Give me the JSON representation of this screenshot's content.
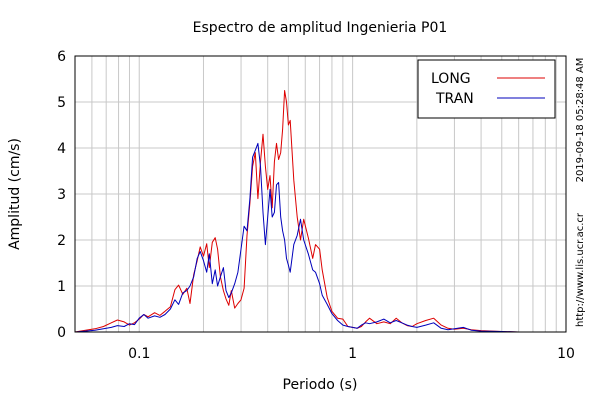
{
  "chart_data": {
    "type": "line",
    "title": "Espectro de amplitud Ingenieria P01",
    "xlabel": "Periodo (s)",
    "ylabel": "Amplitud (cm/s)",
    "xscale": "log",
    "xlim": [
      0.05,
      10
    ],
    "ylim": [
      0,
      6
    ],
    "x_ticks": [
      {
        "value": 0.1,
        "label": "0.1"
      },
      {
        "value": 1,
        "label": "1"
      },
      {
        "value": 10,
        "label": "10"
      }
    ],
    "y_ticks": [
      {
        "value": 0,
        "label": "0"
      },
      {
        "value": 1,
        "label": "1"
      },
      {
        "value": 2,
        "label": "2"
      },
      {
        "value": 3,
        "label": "3"
      },
      {
        "value": 4,
        "label": "4"
      },
      {
        "value": 5,
        "label": "5"
      },
      {
        "value": 6,
        "label": "6"
      }
    ],
    "grid": true,
    "legend_position": "top-right",
    "series": [
      {
        "name": "LONG",
        "color": "#dd0000",
        "points": [
          [
            0.05,
            0.0
          ],
          [
            0.056,
            0.04
          ],
          [
            0.062,
            0.07
          ],
          [
            0.068,
            0.12
          ],
          [
            0.074,
            0.2
          ],
          [
            0.079,
            0.26
          ],
          [
            0.085,
            0.22
          ],
          [
            0.09,
            0.15
          ],
          [
            0.095,
            0.2
          ],
          [
            0.1,
            0.28
          ],
          [
            0.105,
            0.38
          ],
          [
            0.11,
            0.33
          ],
          [
            0.118,
            0.42
          ],
          [
            0.125,
            0.36
          ],
          [
            0.132,
            0.45
          ],
          [
            0.14,
            0.55
          ],
          [
            0.147,
            0.92
          ],
          [
            0.153,
            1.02
          ],
          [
            0.16,
            0.82
          ],
          [
            0.167,
            0.95
          ],
          [
            0.173,
            0.62
          ],
          [
            0.18,
            1.25
          ],
          [
            0.187,
            1.55
          ],
          [
            0.193,
            1.85
          ],
          [
            0.2,
            1.65
          ],
          [
            0.207,
            1.92
          ],
          [
            0.213,
            1.4
          ],
          [
            0.22,
            1.95
          ],
          [
            0.227,
            2.05
          ],
          [
            0.233,
            1.8
          ],
          [
            0.24,
            1.2
          ],
          [
            0.248,
            0.9
          ],
          [
            0.255,
            0.72
          ],
          [
            0.263,
            0.58
          ],
          [
            0.27,
            0.9
          ],
          [
            0.28,
            0.52
          ],
          [
            0.29,
            0.62
          ],
          [
            0.3,
            0.7
          ],
          [
            0.31,
            0.95
          ],
          [
            0.32,
            2.1
          ],
          [
            0.33,
            2.8
          ],
          [
            0.34,
            3.6
          ],
          [
            0.35,
            3.9
          ],
          [
            0.36,
            2.9
          ],
          [
            0.37,
            3.7
          ],
          [
            0.38,
            4.3
          ],
          [
            0.39,
            3.6
          ],
          [
            0.4,
            3.1
          ],
          [
            0.41,
            3.4
          ],
          [
            0.42,
            2.7
          ],
          [
            0.43,
            3.7
          ],
          [
            0.44,
            4.1
          ],
          [
            0.45,
            3.75
          ],
          [
            0.46,
            3.9
          ],
          [
            0.47,
            4.4
          ],
          [
            0.48,
            5.25
          ],
          [
            0.49,
            5.0
          ],
          [
            0.5,
            4.5
          ],
          [
            0.51,
            4.6
          ],
          [
            0.53,
            3.3
          ],
          [
            0.55,
            2.5
          ],
          [
            0.57,
            2.0
          ],
          [
            0.59,
            2.45
          ],
          [
            0.62,
            2.05
          ],
          [
            0.65,
            1.6
          ],
          [
            0.67,
            1.9
          ],
          [
            0.7,
            1.8
          ],
          [
            0.72,
            1.35
          ],
          [
            0.76,
            0.75
          ],
          [
            0.8,
            0.45
          ],
          [
            0.85,
            0.3
          ],
          [
            0.9,
            0.28
          ],
          [
            0.95,
            0.12
          ],
          [
            1.0,
            0.1
          ],
          [
            1.05,
            0.08
          ],
          [
            1.1,
            0.12
          ],
          [
            1.15,
            0.22
          ],
          [
            1.2,
            0.3
          ],
          [
            1.3,
            0.18
          ],
          [
            1.4,
            0.22
          ],
          [
            1.5,
            0.18
          ],
          [
            1.6,
            0.3
          ],
          [
            1.7,
            0.2
          ],
          [
            1.8,
            0.14
          ],
          [
            1.9,
            0.12
          ],
          [
            2.0,
            0.18
          ],
          [
            2.2,
            0.25
          ],
          [
            2.4,
            0.3
          ],
          [
            2.6,
            0.15
          ],
          [
            2.8,
            0.08
          ],
          [
            3.0,
            0.06
          ],
          [
            3.3,
            0.08
          ],
          [
            3.6,
            0.05
          ],
          [
            4.0,
            0.03
          ],
          [
            5.0,
            0.01
          ],
          [
            6.0,
            0.0
          ],
          [
            10.0,
            0.0
          ]
        ]
      },
      {
        "name": "TRAN",
        "color": "#0000bb",
        "points": [
          [
            0.05,
            0.0
          ],
          [
            0.056,
            0.02
          ],
          [
            0.062,
            0.04
          ],
          [
            0.068,
            0.07
          ],
          [
            0.074,
            0.1
          ],
          [
            0.079,
            0.14
          ],
          [
            0.085,
            0.12
          ],
          [
            0.09,
            0.18
          ],
          [
            0.095,
            0.16
          ],
          [
            0.1,
            0.3
          ],
          [
            0.105,
            0.38
          ],
          [
            0.11,
            0.3
          ],
          [
            0.118,
            0.35
          ],
          [
            0.125,
            0.32
          ],
          [
            0.132,
            0.38
          ],
          [
            0.14,
            0.5
          ],
          [
            0.147,
            0.7
          ],
          [
            0.153,
            0.6
          ],
          [
            0.16,
            0.85
          ],
          [
            0.167,
            0.9
          ],
          [
            0.173,
            1.0
          ],
          [
            0.18,
            1.2
          ],
          [
            0.187,
            1.6
          ],
          [
            0.193,
            1.75
          ],
          [
            0.2,
            1.55
          ],
          [
            0.207,
            1.3
          ],
          [
            0.213,
            1.7
          ],
          [
            0.22,
            1.05
          ],
          [
            0.227,
            1.35
          ],
          [
            0.233,
            1.0
          ],
          [
            0.24,
            1.2
          ],
          [
            0.248,
            1.4
          ],
          [
            0.255,
            0.9
          ],
          [
            0.263,
            0.75
          ],
          [
            0.27,
            0.85
          ],
          [
            0.28,
            1.05
          ],
          [
            0.29,
            1.3
          ],
          [
            0.3,
            1.8
          ],
          [
            0.31,
            2.3
          ],
          [
            0.32,
            2.2
          ],
          [
            0.33,
            2.9
          ],
          [
            0.34,
            3.8
          ],
          [
            0.35,
            3.95
          ],
          [
            0.36,
            4.1
          ],
          [
            0.37,
            3.6
          ],
          [
            0.38,
            2.6
          ],
          [
            0.39,
            1.9
          ],
          [
            0.4,
            2.5
          ],
          [
            0.41,
            3.1
          ],
          [
            0.42,
            2.5
          ],
          [
            0.43,
            2.6
          ],
          [
            0.44,
            3.2
          ],
          [
            0.45,
            3.25
          ],
          [
            0.46,
            2.5
          ],
          [
            0.47,
            2.2
          ],
          [
            0.48,
            2.0
          ],
          [
            0.49,
            1.6
          ],
          [
            0.5,
            1.45
          ],
          [
            0.51,
            1.3
          ],
          [
            0.53,
            1.9
          ],
          [
            0.55,
            2.1
          ],
          [
            0.57,
            2.45
          ],
          [
            0.59,
            2.0
          ],
          [
            0.62,
            1.7
          ],
          [
            0.65,
            1.35
          ],
          [
            0.67,
            1.3
          ],
          [
            0.7,
            1.05
          ],
          [
            0.72,
            0.8
          ],
          [
            0.76,
            0.6
          ],
          [
            0.8,
            0.4
          ],
          [
            0.85,
            0.25
          ],
          [
            0.9,
            0.15
          ],
          [
            0.95,
            0.12
          ],
          [
            1.0,
            0.1
          ],
          [
            1.05,
            0.08
          ],
          [
            1.1,
            0.15
          ],
          [
            1.15,
            0.2
          ],
          [
            1.2,
            0.18
          ],
          [
            1.3,
            0.22
          ],
          [
            1.4,
            0.28
          ],
          [
            1.5,
            0.2
          ],
          [
            1.6,
            0.25
          ],
          [
            1.7,
            0.2
          ],
          [
            1.8,
            0.15
          ],
          [
            1.9,
            0.12
          ],
          [
            2.0,
            0.1
          ],
          [
            2.2,
            0.15
          ],
          [
            2.4,
            0.2
          ],
          [
            2.6,
            0.08
          ],
          [
            2.8,
            0.05
          ],
          [
            3.0,
            0.07
          ],
          [
            3.3,
            0.1
          ],
          [
            3.6,
            0.04
          ],
          [
            4.0,
            0.02
          ],
          [
            5.0,
            0.01
          ],
          [
            6.0,
            0.0
          ],
          [
            10.0,
            0.0
          ]
        ]
      }
    ]
  },
  "side_text": {
    "timestamp": "2019-09-18 05:28:48 AM",
    "url": "http://www.lis.ucr.ac.cr"
  }
}
